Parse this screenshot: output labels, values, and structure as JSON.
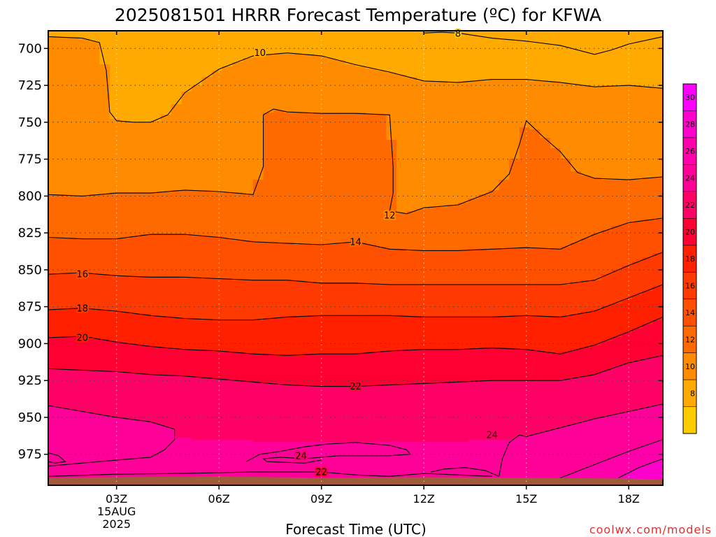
{
  "chart_data": {
    "type": "heatmap",
    "title": "2025081501 HRRR Forecast Temperature (ºC) for KFWA",
    "xlabel": "Forecast Time (UTC)",
    "ylabel": "",
    "credit": "coolwx.com/models",
    "credit_color": "#e03030",
    "x_ticks": [
      {
        "hour": 3,
        "label": "03Z",
        "sub": [
          "15AUG",
          "2025"
        ]
      },
      {
        "hour": 6,
        "label": "06Z"
      },
      {
        "hour": 9,
        "label": "09Z"
      },
      {
        "hour": 12,
        "label": "12Z"
      },
      {
        "hour": 15,
        "label": "15Z"
      },
      {
        "hour": 18,
        "label": "18Z"
      }
    ],
    "xlim": [
      1,
      19
    ],
    "y_ticks": [
      700,
      725,
      750,
      775,
      800,
      825,
      850,
      875,
      900,
      925,
      950,
      975
    ],
    "ylim": [
      688,
      996
    ],
    "y_scale": "pressure (hPa), increasing downward",
    "grid": true,
    "colorbar": {
      "ticks": [
        8,
        10,
        12,
        14,
        16,
        18,
        20,
        22,
        24,
        26,
        28,
        30
      ],
      "bands": [
        {
          "min": 6,
          "max": 8,
          "color": "#ffcc00"
        },
        {
          "min": 8,
          "max": 10,
          "color": "#ffaa00"
        },
        {
          "min": 10,
          "max": 12,
          "color": "#ff8c00"
        },
        {
          "min": 12,
          "max": 14,
          "color": "#ff6a00"
        },
        {
          "min": 14,
          "max": 16,
          "color": "#ff5000"
        },
        {
          "min": 16,
          "max": 18,
          "color": "#ff3a00"
        },
        {
          "min": 18,
          "max": 20,
          "color": "#ff2000"
        },
        {
          "min": 20,
          "max": 22,
          "color": "#ff0033"
        },
        {
          "min": 22,
          "max": 24,
          "color": "#ff0066"
        },
        {
          "min": 24,
          "max": 26,
          "color": "#ff0099"
        },
        {
          "min": 26,
          "max": 28,
          "color": "#ff00aa"
        },
        {
          "min": 28,
          "max": 30,
          "color": "#ff00cc"
        },
        {
          "min": 30,
          "max": 32,
          "color": "#ff00ff"
        }
      ],
      "placement": "right"
    },
    "ground_color": "#a05a3c",
    "ground": [
      [
        1,
        991
      ],
      [
        3,
        990.5
      ],
      [
        6,
        990
      ],
      [
        9,
        991
      ],
      [
        12,
        990.5
      ],
      [
        15,
        991
      ],
      [
        18,
        991.5
      ],
      [
        19,
        992
      ]
    ],
    "contours": [
      {
        "level": 8,
        "points": [
          [
            12,
            689.5
          ],
          [
            12.5,
            689
          ],
          [
            13,
            689.5
          ],
          [
            14,
            693
          ],
          [
            15,
            695
          ],
          [
            16,
            698
          ],
          [
            17,
            704
          ],
          [
            17.5,
            701
          ],
          [
            18,
            697
          ],
          [
            19,
            692
          ]
        ],
        "label": {
          "x": 13,
          "p": 690
        }
      },
      {
        "level": 10,
        "points": [
          [
            1,
            692
          ],
          [
            2,
            693
          ],
          [
            2.5,
            696
          ],
          [
            2.7,
            715
          ],
          [
            2.8,
            743
          ],
          [
            3,
            749
          ],
          [
            3.5,
            750
          ],
          [
            4,
            750
          ],
          [
            4.5,
            745
          ],
          [
            5,
            730
          ],
          [
            6,
            714
          ],
          [
            7,
            705
          ],
          [
            8,
            703
          ],
          [
            9,
            705
          ],
          [
            10,
            711
          ],
          [
            11,
            716
          ],
          [
            12,
            722
          ],
          [
            13,
            723
          ],
          [
            14,
            721
          ],
          [
            15,
            721
          ],
          [
            16,
            723
          ],
          [
            17,
            726
          ],
          [
            18,
            725
          ],
          [
            19,
            727
          ]
        ],
        "label": {
          "x": 7.2,
          "p": 703
        }
      },
      {
        "level": 12,
        "points": [
          [
            1,
            799
          ],
          [
            2,
            800
          ],
          [
            3,
            798
          ],
          [
            4,
            798
          ],
          [
            5,
            796
          ],
          [
            6,
            797
          ],
          [
            7,
            799
          ],
          [
            7.3,
            780
          ],
          [
            7.3,
            745
          ],
          [
            7.6,
            741
          ],
          [
            8,
            743
          ],
          [
            9,
            744
          ],
          [
            10,
            744
          ],
          [
            11,
            745
          ],
          [
            11.1,
            780
          ],
          [
            11.1,
            798
          ],
          [
            11,
            810
          ],
          [
            11.5,
            812
          ],
          [
            12,
            808
          ],
          [
            13,
            806
          ],
          [
            14,
            797
          ],
          [
            14.5,
            785
          ],
          [
            14.8,
            765
          ],
          [
            15,
            749
          ],
          [
            15.5,
            760
          ],
          [
            16,
            770
          ],
          [
            16.5,
            784
          ],
          [
            17,
            788
          ],
          [
            18,
            789
          ],
          [
            19,
            787
          ]
        ],
        "label": {
          "x": 11,
          "p": 813
        }
      },
      {
        "level": 14,
        "points": [
          [
            1,
            828
          ],
          [
            2,
            829
          ],
          [
            3,
            829
          ],
          [
            4,
            826
          ],
          [
            5,
            826
          ],
          [
            6,
            828
          ],
          [
            7,
            831
          ],
          [
            8,
            832
          ],
          [
            9,
            833
          ],
          [
            10,
            831
          ],
          [
            11,
            836
          ],
          [
            12,
            837
          ],
          [
            13,
            837
          ],
          [
            14,
            836
          ],
          [
            15,
            835
          ],
          [
            16,
            836
          ],
          [
            17,
            826
          ],
          [
            18,
            818
          ],
          [
            19,
            815
          ]
        ],
        "label": {
          "x": 10,
          "p": 831
        }
      },
      {
        "level": 16,
        "points": [
          [
            1,
            853
          ],
          [
            2,
            852
          ],
          [
            3,
            854
          ],
          [
            4,
            855
          ],
          [
            5,
            855
          ],
          [
            6,
            856
          ],
          [
            7,
            857
          ],
          [
            8,
            857
          ],
          [
            9,
            859
          ],
          [
            10,
            859
          ],
          [
            11,
            860
          ],
          [
            12,
            860
          ],
          [
            13,
            860
          ],
          [
            14,
            860
          ],
          [
            15,
            860
          ],
          [
            16,
            860
          ],
          [
            17,
            857
          ],
          [
            18,
            847
          ],
          [
            19,
            838
          ]
        ],
        "label": {
          "x": 2,
          "p": 853
        }
      },
      {
        "level": 18,
        "points": [
          [
            1,
            877
          ],
          [
            2,
            876
          ],
          [
            3,
            878
          ],
          [
            4,
            881
          ],
          [
            5,
            883
          ],
          [
            6,
            884
          ],
          [
            7,
            884
          ],
          [
            8,
            882
          ],
          [
            9,
            881
          ],
          [
            10,
            881
          ],
          [
            11,
            881
          ],
          [
            12,
            882
          ],
          [
            13,
            882
          ],
          [
            14,
            882
          ],
          [
            15,
            881
          ],
          [
            16,
            882
          ],
          [
            17,
            878
          ],
          [
            18,
            869
          ],
          [
            19,
            860
          ]
        ],
        "label": {
          "x": 2,
          "p": 876
        }
      },
      {
        "level": 20,
        "points": [
          [
            1,
            896
          ],
          [
            2,
            895
          ],
          [
            3,
            899
          ],
          [
            4,
            902
          ],
          [
            5,
            904
          ],
          [
            6,
            905
          ],
          [
            7,
            907
          ],
          [
            8,
            908
          ],
          [
            9,
            907
          ],
          [
            10,
            907
          ],
          [
            11,
            905
          ],
          [
            12,
            904
          ],
          [
            13,
            904
          ],
          [
            14,
            903
          ],
          [
            15,
            904
          ],
          [
            16,
            907
          ],
          [
            17,
            901
          ],
          [
            18,
            892
          ],
          [
            19,
            882
          ]
        ],
        "label": {
          "x": 2,
          "p": 896
        }
      },
      {
        "level": 22,
        "points": [
          [
            1,
            917
          ],
          [
            2,
            918
          ],
          [
            3,
            919
          ],
          [
            4,
            921
          ],
          [
            5,
            922
          ],
          [
            6,
            924
          ],
          [
            7,
            926
          ],
          [
            8,
            928
          ],
          [
            9,
            929
          ],
          [
            10,
            929
          ],
          [
            11,
            928
          ],
          [
            12,
            927
          ],
          [
            13,
            926
          ],
          [
            14,
            925
          ],
          [
            15,
            925
          ],
          [
            16,
            925
          ],
          [
            17,
            921
          ],
          [
            18,
            913
          ],
          [
            19,
            908
          ]
        ],
        "label": {
          "x": 10,
          "p": 929
        }
      },
      {
        "level": 22,
        "points": [
          [
            1,
            990
          ],
          [
            3,
            988.5
          ],
          [
            5,
            988
          ],
          [
            7,
            987
          ],
          [
            9,
            987
          ],
          [
            10,
            989
          ],
          [
            11,
            990
          ],
          [
            12,
            988
          ],
          [
            13,
            989
          ],
          [
            14,
            990
          ]
        ],
        "label": {
          "x": 9,
          "p": 987
        }
      },
      {
        "level": 24,
        "points": [
          [
            1,
            942
          ],
          [
            2,
            946
          ],
          [
            3,
            950
          ],
          [
            4,
            953
          ],
          [
            4.7,
            958
          ],
          [
            4.7,
            965
          ],
          [
            4.4,
            972
          ],
          [
            4,
            977
          ],
          [
            3,
            979
          ],
          [
            2,
            981
          ],
          [
            1,
            983
          ]
        ]
      },
      {
        "level": 24,
        "points": [
          [
            1,
            974
          ],
          [
            1.3,
            976
          ],
          [
            1.5,
            980
          ],
          [
            1.2,
            981
          ],
          [
            1,
            980
          ]
        ]
      },
      {
        "level": 24,
        "points": [
          [
            6.8,
            980
          ],
          [
            7.2,
            975
          ],
          [
            7.8,
            973
          ],
          [
            8.5,
            970
          ],
          [
            9.2,
            968
          ],
          [
            10,
            967
          ],
          [
            11,
            969
          ],
          [
            11.5,
            972
          ],
          [
            11.6,
            975
          ],
          [
            11,
            976
          ],
          [
            10,
            976
          ],
          [
            9.5,
            976
          ],
          [
            8.5,
            978
          ],
          [
            7.8,
            977
          ],
          [
            7.3,
            978
          ],
          [
            7.4,
            980
          ],
          [
            8.5,
            981
          ],
          [
            9,
            979
          ]
        ],
        "label": {
          "x": 8.4,
          "p": 976
        }
      },
      {
        "level": 24,
        "points": [
          [
            12.2,
            987
          ],
          [
            12.6,
            985
          ],
          [
            13.2,
            984
          ],
          [
            13.8,
            986
          ],
          [
            14.2,
            990
          ]
        ]
      },
      {
        "level": 24,
        "points": [
          [
            14.2,
            990
          ],
          [
            14.3,
            978
          ],
          [
            14.5,
            967
          ],
          [
            14.8,
            962
          ],
          [
            15,
            963
          ],
          [
            16,
            957
          ],
          [
            17,
            951
          ],
          [
            18,
            946
          ],
          [
            19,
            941
          ]
        ],
        "label": {
          "x": 14,
          "p": 962
        }
      },
      {
        "level": 26,
        "points": [
          [
            16,
            991
          ],
          [
            17,
            982
          ],
          [
            18,
            973
          ],
          [
            19,
            965
          ]
        ]
      },
      {
        "level": 28,
        "points": [
          [
            17.7,
            991
          ],
          [
            18.3,
            984
          ],
          [
            19,
            978
          ]
        ]
      }
    ]
  }
}
